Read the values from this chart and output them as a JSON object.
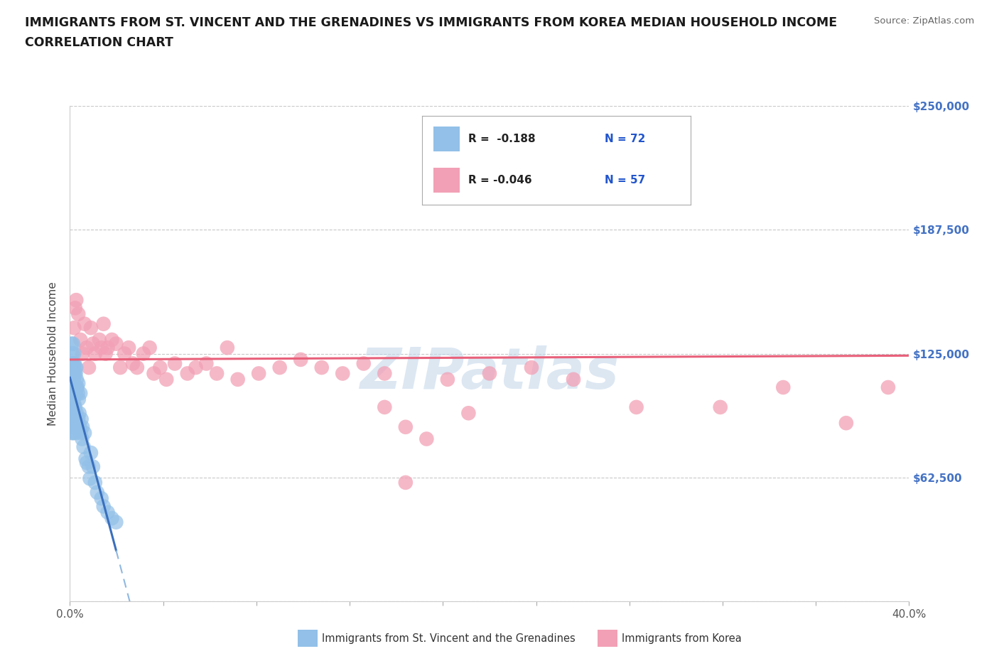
{
  "title_line1": "IMMIGRANTS FROM ST. VINCENT AND THE GRENADINES VS IMMIGRANTS FROM KOREA MEDIAN HOUSEHOLD INCOME",
  "title_line2": "CORRELATION CHART",
  "source_text": "Source: ZipAtlas.com",
  "ylabel": "Median Household Income",
  "xlim": [
    0.0,
    0.4
  ],
  "ylim": [
    0,
    250000
  ],
  "yticks": [
    0,
    62500,
    125000,
    187500,
    250000
  ],
  "ytick_labels": [
    "",
    "$62,500",
    "$125,000",
    "$187,500",
    "$250,000"
  ],
  "xticks": [
    0.0,
    0.04444,
    0.08889,
    0.13333,
    0.17778,
    0.22222,
    0.26667,
    0.31111,
    0.35556,
    0.4
  ],
  "xtick_labels": [
    "0.0%",
    "",
    "",
    "",
    "",
    "",
    "",
    "",
    "",
    "40.0%"
  ],
  "legend_r1": "R =  -0.188",
  "legend_n1": "N = 72",
  "legend_r2": "R = -0.046",
  "legend_n2": "N = 57",
  "color_blue": "#92c0e8",
  "color_pink": "#f2a0b5",
  "trend_blue_solid": "#3a6fbd",
  "trend_blue_dashed": "#90b8e0",
  "trend_pink": "#e8607a",
  "watermark": "ZIPatlas",
  "watermark_color": "#c5d8ea",
  "background_color": "#ffffff",
  "grid_color": "#c8c8c8",
  "blue_scatter_x": [
    0.0005,
    0.0005,
    0.0008,
    0.0008,
    0.001,
    0.001,
    0.001,
    0.001,
    0.001,
    0.0012,
    0.0012,
    0.0013,
    0.0013,
    0.0015,
    0.0015,
    0.0015,
    0.0015,
    0.0015,
    0.0017,
    0.0017,
    0.0018,
    0.0018,
    0.0018,
    0.002,
    0.002,
    0.002,
    0.002,
    0.0022,
    0.0022,
    0.0023,
    0.0023,
    0.0025,
    0.0025,
    0.0025,
    0.0025,
    0.0028,
    0.0028,
    0.0028,
    0.003,
    0.003,
    0.003,
    0.0032,
    0.0032,
    0.0035,
    0.0035,
    0.0038,
    0.0038,
    0.004,
    0.004,
    0.0042,
    0.0045,
    0.0048,
    0.005,
    0.005,
    0.0055,
    0.0058,
    0.006,
    0.0065,
    0.007,
    0.0075,
    0.008,
    0.009,
    0.0095,
    0.01,
    0.011,
    0.012,
    0.013,
    0.015,
    0.016,
    0.018,
    0.02,
    0.022
  ],
  "blue_scatter_y": [
    118000,
    108000,
    130000,
    105000,
    120000,
    112000,
    100000,
    92000,
    85000,
    125000,
    115000,
    108000,
    95000,
    130000,
    120000,
    110000,
    95000,
    85000,
    118000,
    105000,
    112000,
    98000,
    88000,
    125000,
    115000,
    100000,
    88000,
    120000,
    108000,
    115000,
    95000,
    118000,
    108000,
    98000,
    85000,
    115000,
    105000,
    88000,
    118000,
    108000,
    90000,
    112000,
    95000,
    108000,
    92000,
    105000,
    88000,
    110000,
    92000,
    102000,
    95000,
    88000,
    105000,
    85000,
    92000,
    82000,
    88000,
    78000,
    85000,
    72000,
    70000,
    68000,
    62000,
    75000,
    68000,
    60000,
    55000,
    52000,
    48000,
    45000,
    42000,
    40000
  ],
  "pink_scatter_x": [
    0.002,
    0.0025,
    0.003,
    0.004,
    0.005,
    0.006,
    0.007,
    0.008,
    0.009,
    0.01,
    0.011,
    0.012,
    0.014,
    0.015,
    0.016,
    0.017,
    0.018,
    0.02,
    0.022,
    0.024,
    0.026,
    0.028,
    0.03,
    0.032,
    0.035,
    0.038,
    0.04,
    0.043,
    0.046,
    0.05,
    0.056,
    0.06,
    0.065,
    0.07,
    0.075,
    0.08,
    0.09,
    0.1,
    0.11,
    0.12,
    0.13,
    0.14,
    0.15,
    0.16,
    0.18,
    0.2,
    0.22,
    0.24,
    0.27,
    0.31,
    0.34,
    0.37,
    0.39,
    0.15,
    0.16,
    0.17,
    0.19
  ],
  "pink_scatter_y": [
    138000,
    148000,
    152000,
    145000,
    132000,
    125000,
    140000,
    128000,
    118000,
    138000,
    130000,
    125000,
    132000,
    128000,
    140000,
    125000,
    128000,
    132000,
    130000,
    118000,
    125000,
    128000,
    120000,
    118000,
    125000,
    128000,
    115000,
    118000,
    112000,
    120000,
    115000,
    118000,
    120000,
    115000,
    128000,
    112000,
    115000,
    118000,
    122000,
    118000,
    115000,
    120000,
    115000,
    60000,
    112000,
    115000,
    118000,
    112000,
    98000,
    98000,
    108000,
    90000,
    108000,
    98000,
    88000,
    82000,
    95000
  ]
}
